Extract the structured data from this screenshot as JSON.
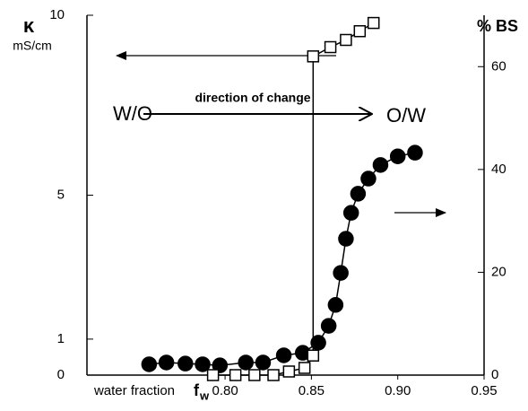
{
  "chart_data": {
    "type": "scatter",
    "y_label": "κ",
    "y_unit": "mS/cm",
    "y2_label": "% BS",
    "x_label": "water fraction",
    "x_symbol": "f",
    "x_symbol_sub": "w",
    "annotations": {
      "left": "W/O",
      "middle": "direction of change",
      "right": "O/W"
    },
    "xlim": [
      0.72,
      0.95
    ],
    "xticks": [
      {
        "value": 0.8,
        "label": "0.80"
      },
      0.85,
      {
        "value": 0.9,
        "label": "0.90"
      },
      0.95
    ],
    "ylim": [
      0,
      10
    ],
    "yticks": [
      0,
      1,
      5,
      10
    ],
    "y2lim": [
      0,
      70
    ],
    "y2ticks": [
      0,
      20,
      40,
      60
    ],
    "series": [
      {
        "marker": "circle",
        "color": "#000000",
        "x": [
          0.756,
          0.766,
          0.777,
          0.787,
          0.797,
          0.812,
          0.822,
          0.834,
          0.845,
          0.854,
          0.86,
          0.864,
          0.867,
          0.87,
          0.873,
          0.877,
          0.883,
          0.89,
          0.9,
          0.91
        ],
        "values": [
          0.3,
          0.35,
          0.32,
          0.3,
          0.27,
          0.35,
          0.35,
          0.55,
          0.62,
          0.9,
          1.37,
          1.95,
          2.84,
          3.79,
          4.51,
          5.04,
          5.46,
          5.84,
          6.08,
          6.18
        ]
      },
      {
        "marker": "square",
        "color": "#ffffff",
        "axis": "y2",
        "x": [
          0.793,
          0.806,
          0.817,
          0.828,
          0.837,
          0.846,
          0.851,
          0.851,
          0.861,
          0.87,
          0.878,
          0.886
        ],
        "values": [
          0,
          0,
          0,
          0,
          0.7,
          1.4,
          3.8,
          62,
          63.8,
          65.2,
          66.9,
          68.5
        ]
      }
    ]
  }
}
